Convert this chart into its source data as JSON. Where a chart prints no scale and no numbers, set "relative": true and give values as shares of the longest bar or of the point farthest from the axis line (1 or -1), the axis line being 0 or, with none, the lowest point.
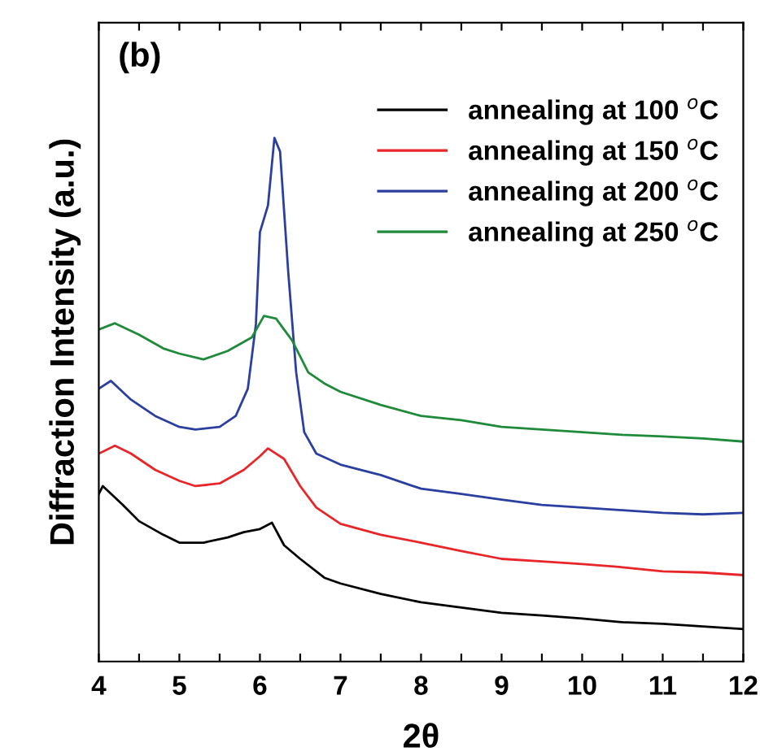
{
  "chart_data": {
    "type": "line",
    "relative": true,
    "xlabel": "2θ",
    "ylabel": "Diffraction Intensity (a.u.)",
    "annotations": [
      "(b)"
    ],
    "xlim": [
      4,
      12
    ],
    "xticks": [
      4,
      {
        "value": 4.5,
        "label": null
      },
      5,
      {
        "value": 5.5,
        "label": null
      },
      6,
      {
        "value": 6.5,
        "label": null
      },
      7,
      {
        "value": 7.5,
        "label": null
      },
      8,
      {
        "value": 8.5,
        "label": null
      },
      9,
      {
        "value": 9.5,
        "label": null
      },
      10,
      {
        "value": 10.5,
        "label": null
      },
      11,
      {
        "value": 11.5,
        "label": null
      },
      12
    ],
    "legend": "top right",
    "grid": false,
    "marker": "none",
    "line_style": "solid",
    "series": [
      {
        "name": "annealing at 100 $^{o}$C",
        "color": "#000000",
        "x": [
          4.0,
          4.05,
          4.3,
          4.5,
          4.8,
          5.0,
          5.3,
          5.6,
          5.8,
          6.0,
          6.15,
          6.3,
          6.5,
          6.8,
          7.0,
          7.5,
          8.0,
          8.5,
          9.0,
          9.5,
          10.0,
          10.5,
          11.0,
          11.5,
          12.0
        ],
        "values": [
          0.32,
          0.335,
          0.299,
          0.268,
          0.242,
          0.227,
          0.227,
          0.237,
          0.247,
          0.253,
          0.265,
          0.222,
          0.196,
          0.16,
          0.149,
          0.129,
          0.113,
          0.103,
          0.093,
          0.088,
          0.082,
          0.075,
          0.072,
          0.067,
          0.062
        ]
      },
      {
        "name": "annealing at 150 $^{o}$C",
        "color": "#e8262a",
        "x": [
          4.0,
          4.2,
          4.4,
          4.7,
          5.0,
          5.2,
          5.5,
          5.8,
          6.0,
          6.1,
          6.3,
          6.5,
          6.7,
          7.0,
          7.5,
          8.0,
          8.5,
          9.0,
          9.5,
          10.0,
          10.5,
          11.0,
          11.5,
          12.0
        ],
        "values": [
          0.397,
          0.412,
          0.397,
          0.366,
          0.345,
          0.335,
          0.34,
          0.366,
          0.392,
          0.407,
          0.387,
          0.335,
          0.294,
          0.263,
          0.242,
          0.227,
          0.211,
          0.196,
          0.191,
          0.186,
          0.18,
          0.172,
          0.17,
          0.165
        ]
      },
      {
        "name": "annealing at 200 $^{o}$C",
        "color": "#2a3fa0",
        "x": [
          4.0,
          4.15,
          4.4,
          4.7,
          5.0,
          5.2,
          5.5,
          5.7,
          5.85,
          5.95,
          6.0,
          6.1,
          6.18,
          6.25,
          6.35,
          6.45,
          6.55,
          6.7,
          7.0,
          7.5,
          8.0,
          8.5,
          9.0,
          9.5,
          10.0,
          10.5,
          11.0,
          11.5,
          12.0
        ],
        "values": [
          0.521,
          0.536,
          0.5,
          0.469,
          0.448,
          0.443,
          0.448,
          0.469,
          0.521,
          0.644,
          0.82,
          0.871,
          1,
          0.974,
          0.747,
          0.552,
          0.438,
          0.397,
          0.376,
          0.356,
          0.33,
          0.32,
          0.309,
          0.299,
          0.294,
          0.289,
          0.284,
          0.281,
          0.284
        ]
      },
      {
        "name": "annealing at 250 $^{o}$C",
        "color": "#1e8a3a",
        "x": [
          4.0,
          4.2,
          4.5,
          4.8,
          5.0,
          5.3,
          5.6,
          5.9,
          6.05,
          6.2,
          6.4,
          6.6,
          6.8,
          7.0,
          7.5,
          8.0,
          8.5,
          9.0,
          9.5,
          10.0,
          10.5,
          11.0,
          11.5,
          12.0
        ],
        "values": [
          0.634,
          0.646,
          0.624,
          0.598,
          0.588,
          0.577,
          0.593,
          0.619,
          0.66,
          0.655,
          0.613,
          0.552,
          0.531,
          0.515,
          0.49,
          0.469,
          0.461,
          0.448,
          0.443,
          0.438,
          0.433,
          0.43,
          0.426,
          0.42
        ]
      }
    ]
  }
}
